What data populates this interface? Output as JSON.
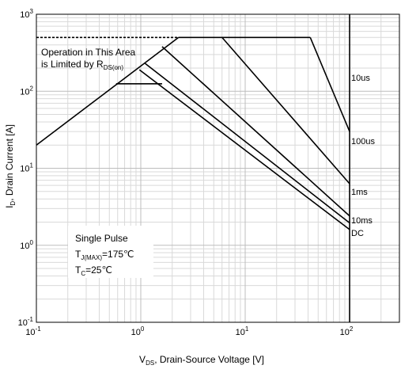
{
  "chart_data": {
    "type": "line",
    "scale": {
      "x": "log",
      "y": "log"
    },
    "xlim": [
      0.1,
      300
    ],
    "ylim": [
      0.1,
      1000
    ],
    "grid": true,
    "xlabel": {
      "main": "V",
      "sub": "DS",
      "rest": ", Drain-Source Voltage [V]"
    },
    "ylabel": {
      "main": "I",
      "sub": "D",
      "rest": ", Drain Current [A]"
    },
    "x_ticks": [
      {
        "value": 0.1,
        "base": "10",
        "exp": "-1"
      },
      {
        "value": 1,
        "base": "10",
        "exp": "0"
      },
      {
        "value": 10,
        "base": "10",
        "exp": "1"
      },
      {
        "value": 100,
        "base": "10",
        "exp": "2"
      }
    ],
    "y_ticks": [
      {
        "value": 0.1,
        "base": "10",
        "exp": "-1"
      },
      {
        "value": 1,
        "base": "10",
        "exp": "0"
      },
      {
        "value": 10,
        "base": "10",
        "exp": "1"
      },
      {
        "value": 100,
        "base": "10",
        "exp": "2"
      },
      {
        "value": 1000,
        "base": "10",
        "exp": "3"
      }
    ],
    "rds_limit": {
      "x": [
        0.1,
        2.3
      ],
      "y": [
        20,
        500
      ]
    },
    "current_limit": {
      "x": [
        0.1,
        42
      ],
      "y": [
        500,
        500
      ],
      "dashed_to_x": 2.3
    },
    "series": [
      {
        "name": "10us",
        "x": [
          42,
          100
        ],
        "y": [
          500,
          30
        ]
      },
      {
        "name": "100us",
        "x": [
          6,
          100
        ],
        "y": [
          500,
          6.3
        ]
      },
      {
        "name": "1ms",
        "x": [
          1.6,
          100
        ],
        "y": [
          380,
          2.4
        ]
      },
      {
        "name": "10ms",
        "x": [
          1.1,
          100
        ],
        "y": [
          230,
          1.95
        ]
      },
      {
        "name": "DC",
        "x": [
          0.97,
          100
        ],
        "y": [
          190,
          1.6
        ],
        "plateau": {
          "x": [
            0.58,
            1.6
          ],
          "y": 125
        }
      }
    ],
    "vertical_line_x": 100,
    "annotations": {
      "area_line1": "Operation in This Area",
      "area_line2_main": "is Limited by R",
      "area_line2_sub": "DS(on)",
      "pulse_title": "Single Pulse",
      "tj_main": "T",
      "tj_sub": "J(MAX)",
      "tj_value": "=175℃",
      "tc_main": "T",
      "tc_sub": "C",
      "tc_value": "=25℃"
    }
  }
}
